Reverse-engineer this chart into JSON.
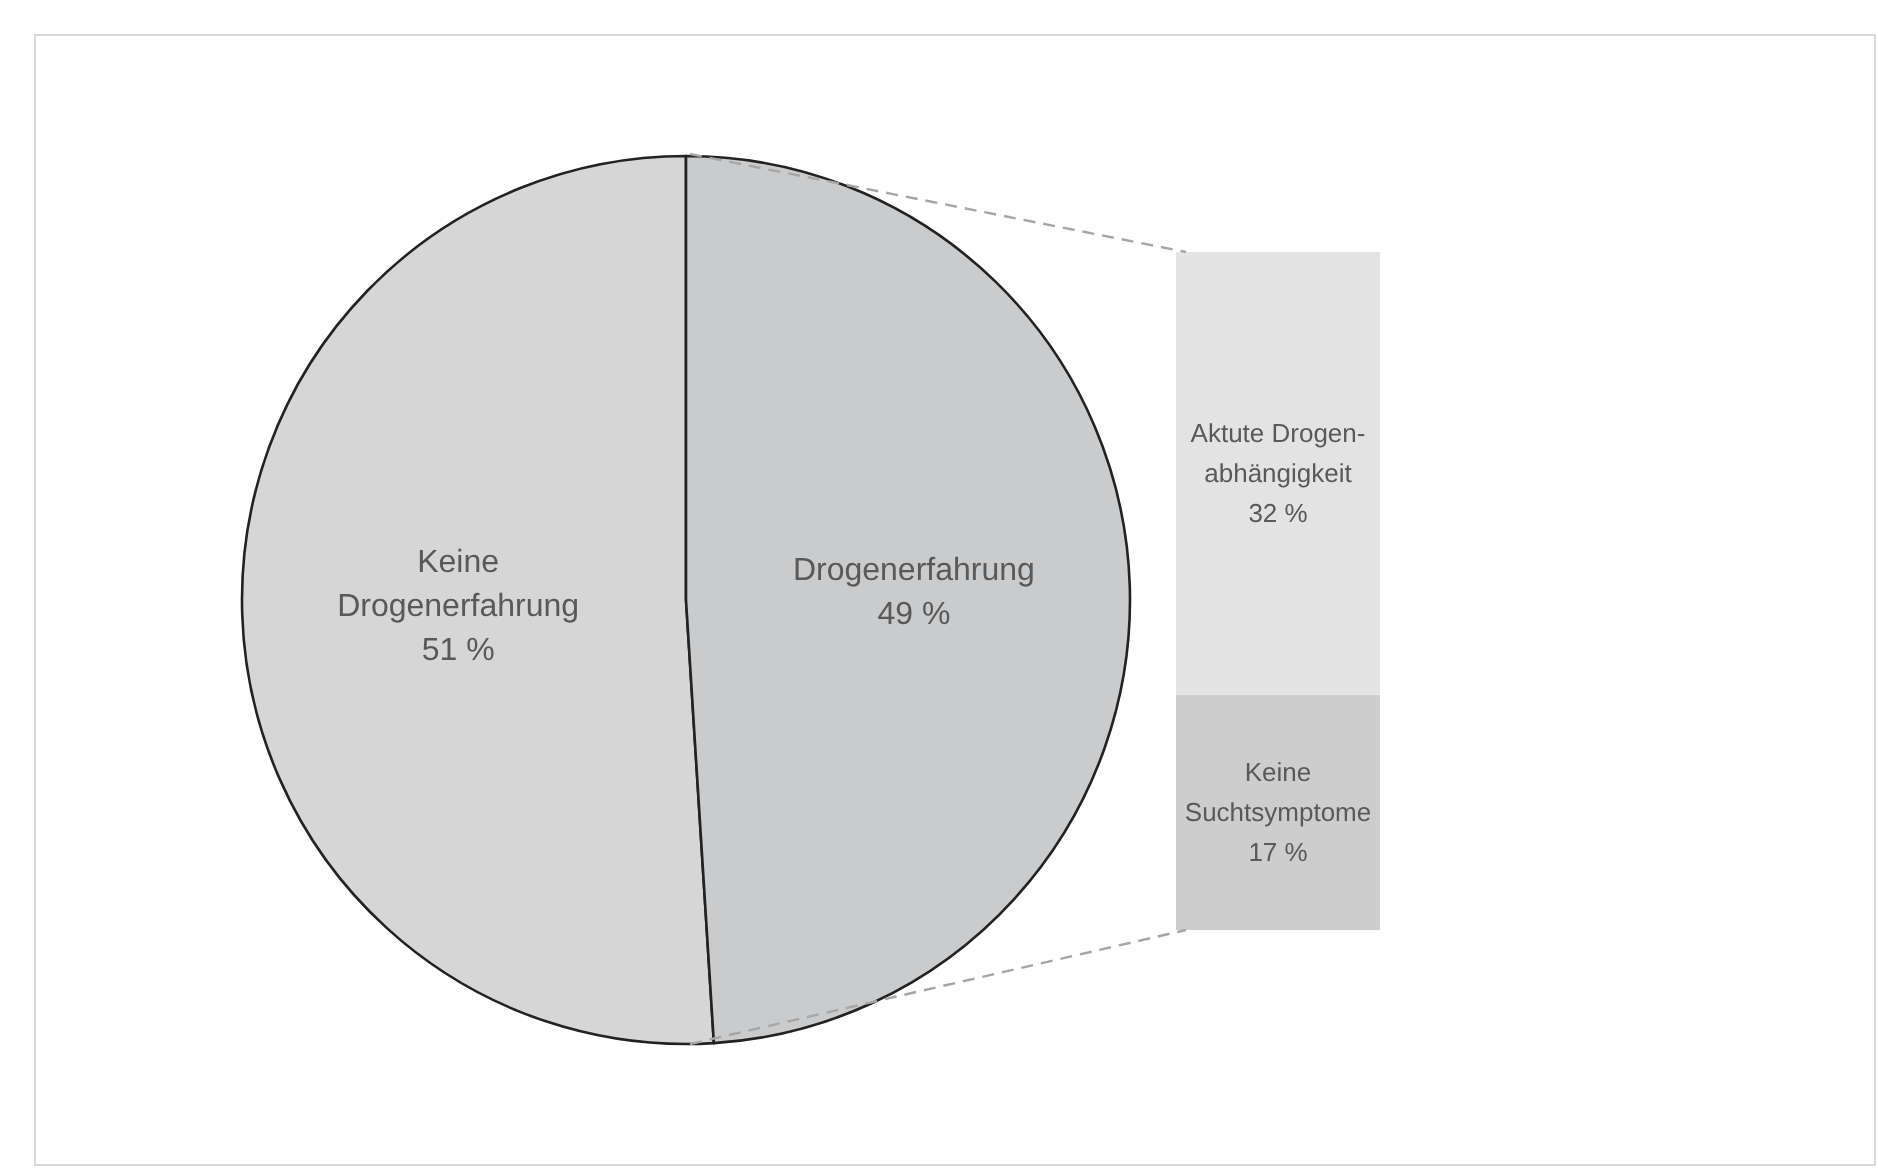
{
  "chart_data": [
    {
      "type": "pie",
      "categories": [
        "Keine Drogenerfahrung",
        "Drogenerfahrung"
      ],
      "values": [
        51,
        49
      ],
      "value_labels": [
        "51 %",
        "49 %"
      ],
      "colors": [
        "#d6d6d6",
        "#c9cbcd"
      ]
    },
    {
      "type": "bar",
      "stacked": true,
      "categories": [
        null
      ],
      "tick_labels": false,
      "series": [
        {
          "name": "Keine Suchtsymptome",
          "color": "#cdcdcd",
          "values": [
            17
          ],
          "value_labels": [
            "17 %"
          ]
        },
        {
          "name": "Aktute Drogen-abhängigkeit",
          "color": "#e3e3e3",
          "values": [
            32
          ],
          "value_labels": [
            "32 %"
          ]
        }
      ]
    }
  ]
}
